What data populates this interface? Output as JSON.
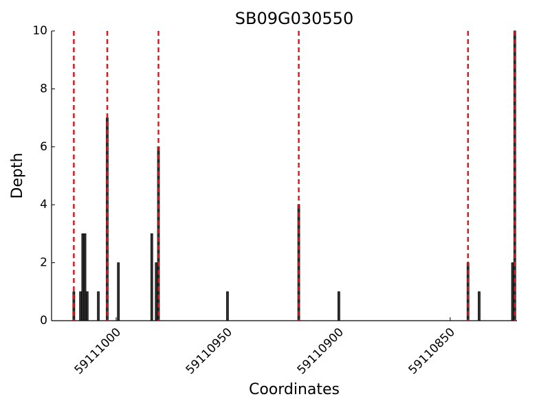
{
  "chart_data": {
    "type": "bar",
    "title": "SB09G030550",
    "x_label": "Coordinates",
    "y_label": "Depth",
    "x": [
      59111019,
      59111016,
      59111015,
      59111014,
      59111013,
      59111008,
      59111004,
      59110999,
      59110984,
      59110982,
      59110981,
      59110950,
      59110918,
      59110900,
      59110842,
      59110837,
      59110822,
      59110821
    ],
    "values": [
      1,
      1,
      3,
      3,
      1,
      1,
      7,
      2,
      3,
      2,
      6,
      1,
      4,
      1,
      2,
      1,
      2,
      10
    ],
    "color": "#333333",
    "edge_color": "#000000",
    "vlines": [
      59111019,
      59111004,
      59110981,
      59110918,
      59110842,
      59110821
    ],
    "vline_color": "#e8141a",
    "xlim": [
      59111029,
      59110820
    ],
    "xticks": [
      59111000,
      59110950,
      59110900,
      59110850
    ],
    "ylim": [
      0,
      10
    ],
    "yticks": [
      0,
      2,
      4,
      6,
      8,
      10
    ]
  }
}
